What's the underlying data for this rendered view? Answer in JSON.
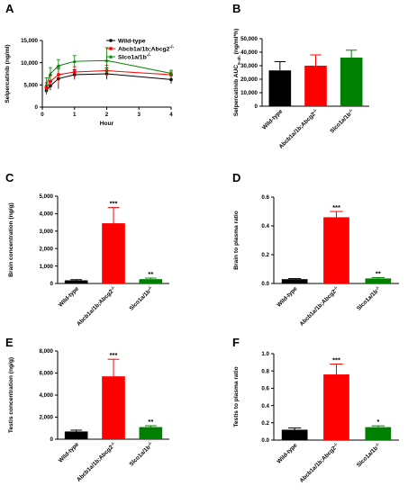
{
  "colors": {
    "wild_type": "#000000",
    "abcb": "#ff0000",
    "slco": "#008000"
  },
  "chart_data": [
    {
      "panel": "A",
      "type": "line",
      "xlabel": "Hour",
      "ylabel": "Selpercatinib (ng/ml)",
      "xlim": [
        0,
        4
      ],
      "ylim": [
        0,
        15000
      ],
      "x_ticks": [
        "0",
        "1",
        "2",
        "3",
        "4"
      ],
      "y_ticks": [
        "0",
        "5,000",
        "10,000",
        "15,000"
      ],
      "legend_position": "top-right",
      "series": [
        {
          "name": "Wild-type",
          "color": "#000000",
          "marker": "circle",
          "x": [
            0.125,
            0.25,
            0.5,
            1,
            2,
            4
          ],
          "y": [
            3700,
            4800,
            6400,
            7300,
            7500,
            6200
          ],
          "err": [
            800,
            1000,
            2300,
            1100,
            1300,
            900
          ]
        },
        {
          "name": "Abcb1a/1b;Abcg2",
          "sup": "-/-",
          "color": "#ff0000",
          "marker": "square",
          "x": [
            0.125,
            0.25,
            0.5,
            1,
            2,
            4
          ],
          "y": [
            4300,
            5800,
            7300,
            7900,
            8200,
            7300
          ],
          "err": [
            1200,
            1300,
            2000,
            1200,
            1200,
            600
          ]
        },
        {
          "name": "Slco1a/1b",
          "sup": "-/-",
          "color": "#008000",
          "marker": "triangle",
          "x": [
            0.125,
            0.25,
            0.5,
            1,
            2,
            4
          ],
          "y": [
            5000,
            7500,
            9300,
            10300,
            10500,
            7600
          ],
          "err": [
            1600,
            1400,
            1400,
            1300,
            2900,
            700
          ]
        }
      ]
    },
    {
      "panel": "B",
      "type": "bar",
      "ylabel": "Selpercatinib AUC0-4h (ng/ml*h)",
      "ylim": [
        0,
        50000
      ],
      "y_ticks": [
        "0",
        "10,000",
        "20,000",
        "30,000",
        "40,000",
        "50,000"
      ],
      "categories": [
        "Wild-type",
        "Abcb1a/1b;Abcg2",
        "Slco1a/1b"
      ],
      "values": [
        26500,
        30000,
        36000
      ],
      "err": [
        6500,
        8000,
        5500
      ],
      "significance": [
        "",
        "",
        ""
      ]
    },
    {
      "panel": "C",
      "type": "bar",
      "ylabel": "Brain concentration (ng/g)",
      "ylim": [
        0,
        5000
      ],
      "y_ticks": [
        "0",
        "1,000",
        "2,000",
        "3,000",
        "4,000",
        "5,000"
      ],
      "categories": [
        "Wild-type",
        "Abcb1a/1b;Abcg2",
        "Slco1a/1b"
      ],
      "values": [
        180,
        3450,
        250
      ],
      "err": [
        40,
        900,
        60
      ],
      "significance": [
        "",
        "***",
        "**"
      ]
    },
    {
      "panel": "D",
      "type": "bar",
      "ylabel": "Brain to plasma ratio",
      "ylim": [
        0,
        0.6
      ],
      "y_ticks": [
        "0.0",
        "0.2",
        "0.4",
        "0.6"
      ],
      "categories": [
        "Wild-type",
        "Abcb1a/1b;Abcg2",
        "Slco1a/1b"
      ],
      "values": [
        0.03,
        0.46,
        0.035
      ],
      "err": [
        0.004,
        0.04,
        0.006
      ],
      "significance": [
        "",
        "***",
        "**"
      ]
    },
    {
      "panel": "E",
      "type": "bar",
      "ylabel": "Testis concentration (ng/g)",
      "ylim": [
        0,
        8000
      ],
      "y_ticks": [
        "0",
        "2,000",
        "4,000",
        "6,000",
        "8,000"
      ],
      "categories": [
        "Wild-type",
        "Abcb1a/1b;Abcg2",
        "Slco1a/1b"
      ],
      "values": [
        700,
        5700,
        1100
      ],
      "err": [
        120,
        1550,
        120
      ],
      "significance": [
        "",
        "***",
        "**"
      ]
    },
    {
      "panel": "F",
      "type": "bar",
      "ylabel": "Testis to plasma ratio",
      "ylim": [
        0,
        1.0
      ],
      "y_ticks": [
        "0.0",
        "0.2",
        "0.4",
        "0.6",
        "0.8",
        "1.0"
      ],
      "categories": [
        "Wild-type",
        "Abcb1a/1b;Abcg2",
        "Slco1a/1b"
      ],
      "values": [
        0.12,
        0.76,
        0.15
      ],
      "err": [
        0.02,
        0.12,
        0.015
      ],
      "significance": [
        "",
        "***",
        "*"
      ]
    }
  ]
}
